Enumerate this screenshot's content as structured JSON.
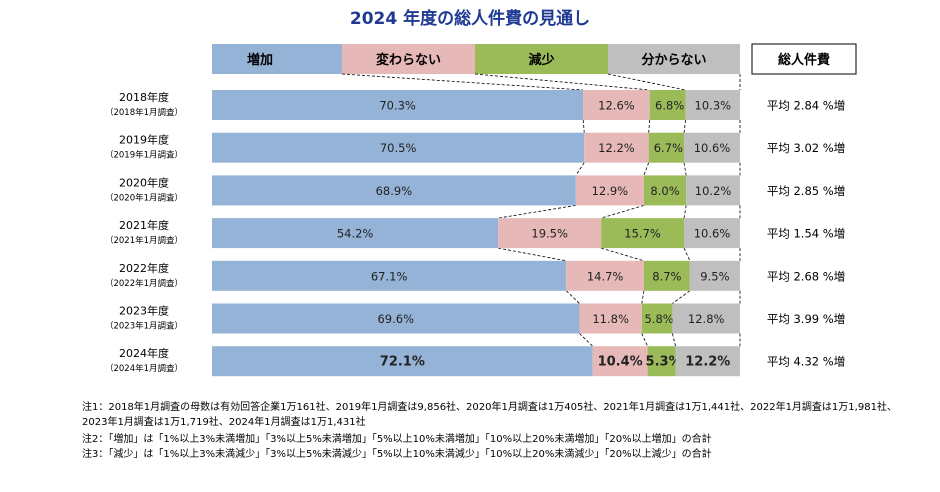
{
  "chart_data": {
    "type": "bar",
    "stacked": true,
    "orientation": "horizontal",
    "title": "2024 年度の総人件費の見通し",
    "legend_placement": "top",
    "categories": [
      {
        "label": "2018年度",
        "sub": "（2018年1月調査）"
      },
      {
        "label": "2019年度",
        "sub": "（2019年1月調査）"
      },
      {
        "label": "2020年度",
        "sub": "（2020年1月調査）"
      },
      {
        "label": "2021年度",
        "sub": "（2021年1月調査）"
      },
      {
        "label": "2022年度",
        "sub": "（2022年1月調査）"
      },
      {
        "label": "2023年度",
        "sub": "（2023年1月調査）"
      },
      {
        "label": "2024年度",
        "sub": "（2024年1月調査）"
      }
    ],
    "series": [
      {
        "name": "増加",
        "color": "#95b3d7",
        "values": [
          70.3,
          70.5,
          68.9,
          54.2,
          67.1,
          69.6,
          72.1
        ],
        "labels": [
          "70.3%",
          "70.5%",
          "68.9%",
          "54.2%",
          "67.1%",
          "69.6%",
          "72.1%"
        ]
      },
      {
        "name": "変わらない",
        "color": "#e6b9b8",
        "values": [
          12.6,
          12.2,
          12.9,
          19.5,
          14.7,
          11.8,
          10.4
        ],
        "labels": [
          "12.6%",
          "12.2%",
          "12.9%",
          "19.5%",
          "14.7%",
          "11.8%",
          "10.4%"
        ]
      },
      {
        "name": "減少",
        "color": "#9bbb59",
        "values": [
          6.8,
          6.7,
          8.0,
          15.7,
          8.7,
          5.8,
          5.3
        ],
        "labels": [
          "6.8%",
          "6.7%",
          "8.0%",
          "15.7%",
          "8.7%",
          "5.8%",
          "5.3%"
        ]
      },
      {
        "name": "分からない",
        "color": "#bfbfbf",
        "values": [
          10.3,
          10.6,
          10.2,
          10.6,
          9.5,
          12.8,
          12.2
        ],
        "labels": [
          "10.3%",
          "10.6%",
          "10.2%",
          "10.6%",
          "9.5%",
          "12.8%",
          "12.2%"
        ]
      }
    ],
    "bold_row": 6,
    "xlim": [
      0,
      100
    ],
    "side_header": "総人件費",
    "side_values": [
      "平均 2.84 %増",
      "平均 3.02 %増",
      "平均 2.85 %増",
      "平均 1.54 %増",
      "平均 2.68 %増",
      "平均 3.99 %増",
      "平均 4.32 %増"
    ]
  },
  "notes": {
    "note1": "注1：2018年1月調査の母数は有効回答企業1万161社、2019年1月調査は9,856社、2020年1月調査は1万405社、2021年1月調査は1万1,441社、2022年1月調査は1万1,981社、2023年1月調査は1万1,719社、2024年1月調査は1万1,431社",
    "note2": "注2：「増加」は「1%以上3%未満増加」「3%以上5%未満増加」「5%以上10%未満増加」「10%以上20%未満増加」「20%以上増加」の合計",
    "note3": "注3：「減少」は「1%以上3%未満減少」「3%以上5%未満減少」「5%以上10%未満減少」「10%以上20%未満減少」「20%以上減少」の合計"
  }
}
